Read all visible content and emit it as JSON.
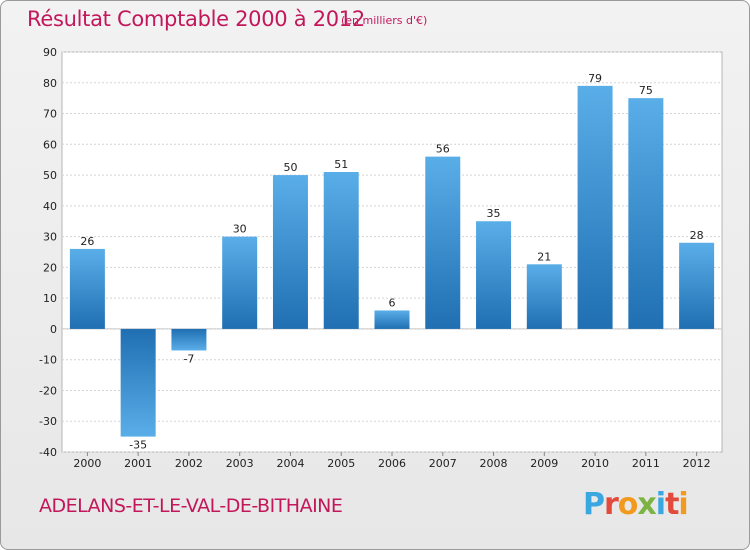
{
  "chart_data": {
    "type": "bar",
    "title": "Résultat Comptable 2000 à 2012",
    "subtitle": "(en milliers d'€)",
    "categories": [
      "2000",
      "2001",
      "2002",
      "2003",
      "2004",
      "2005",
      "2006",
      "2007",
      "2008",
      "2009",
      "2010",
      "2011",
      "2012"
    ],
    "values": [
      26,
      -35,
      -7,
      30,
      50,
      51,
      6,
      56,
      35,
      21,
      79,
      75,
      28
    ],
    "data_labels": [
      "26",
      "-35",
      "-7",
      "30",
      "50",
      "51",
      "6",
      "56",
      "35",
      "21",
      "79",
      "75",
      "28"
    ],
    "ylim": [
      -40,
      90
    ],
    "yticks": [
      "90",
      "80",
      "70",
      "60",
      "50",
      "40",
      "30",
      "20",
      "10",
      "0",
      "-10",
      "-20",
      "-30",
      "-40"
    ],
    "ytick_values": [
      90,
      80,
      70,
      60,
      50,
      40,
      30,
      20,
      10,
      0,
      -10,
      -20,
      -30,
      -40
    ],
    "grid": "horizontal",
    "xlabel": "",
    "ylabel": "",
    "bar_color": "#3d8fd1",
    "bar_color_light": "#5aaee8",
    "bar_color_dark": "#1f6fb2"
  },
  "footer": {
    "place_name": "ADELANS-ET-LE-VAL-DE-BITHAINE",
    "logo_text": "Proxiti"
  },
  "colors": {
    "accent": "#c2185b",
    "logo_letters": [
      "#3aa7e0",
      "#e24a3b",
      "#f29a1d",
      "#7cb342",
      "#3aa7e0",
      "#e24a3b",
      "#f29a1d"
    ]
  }
}
